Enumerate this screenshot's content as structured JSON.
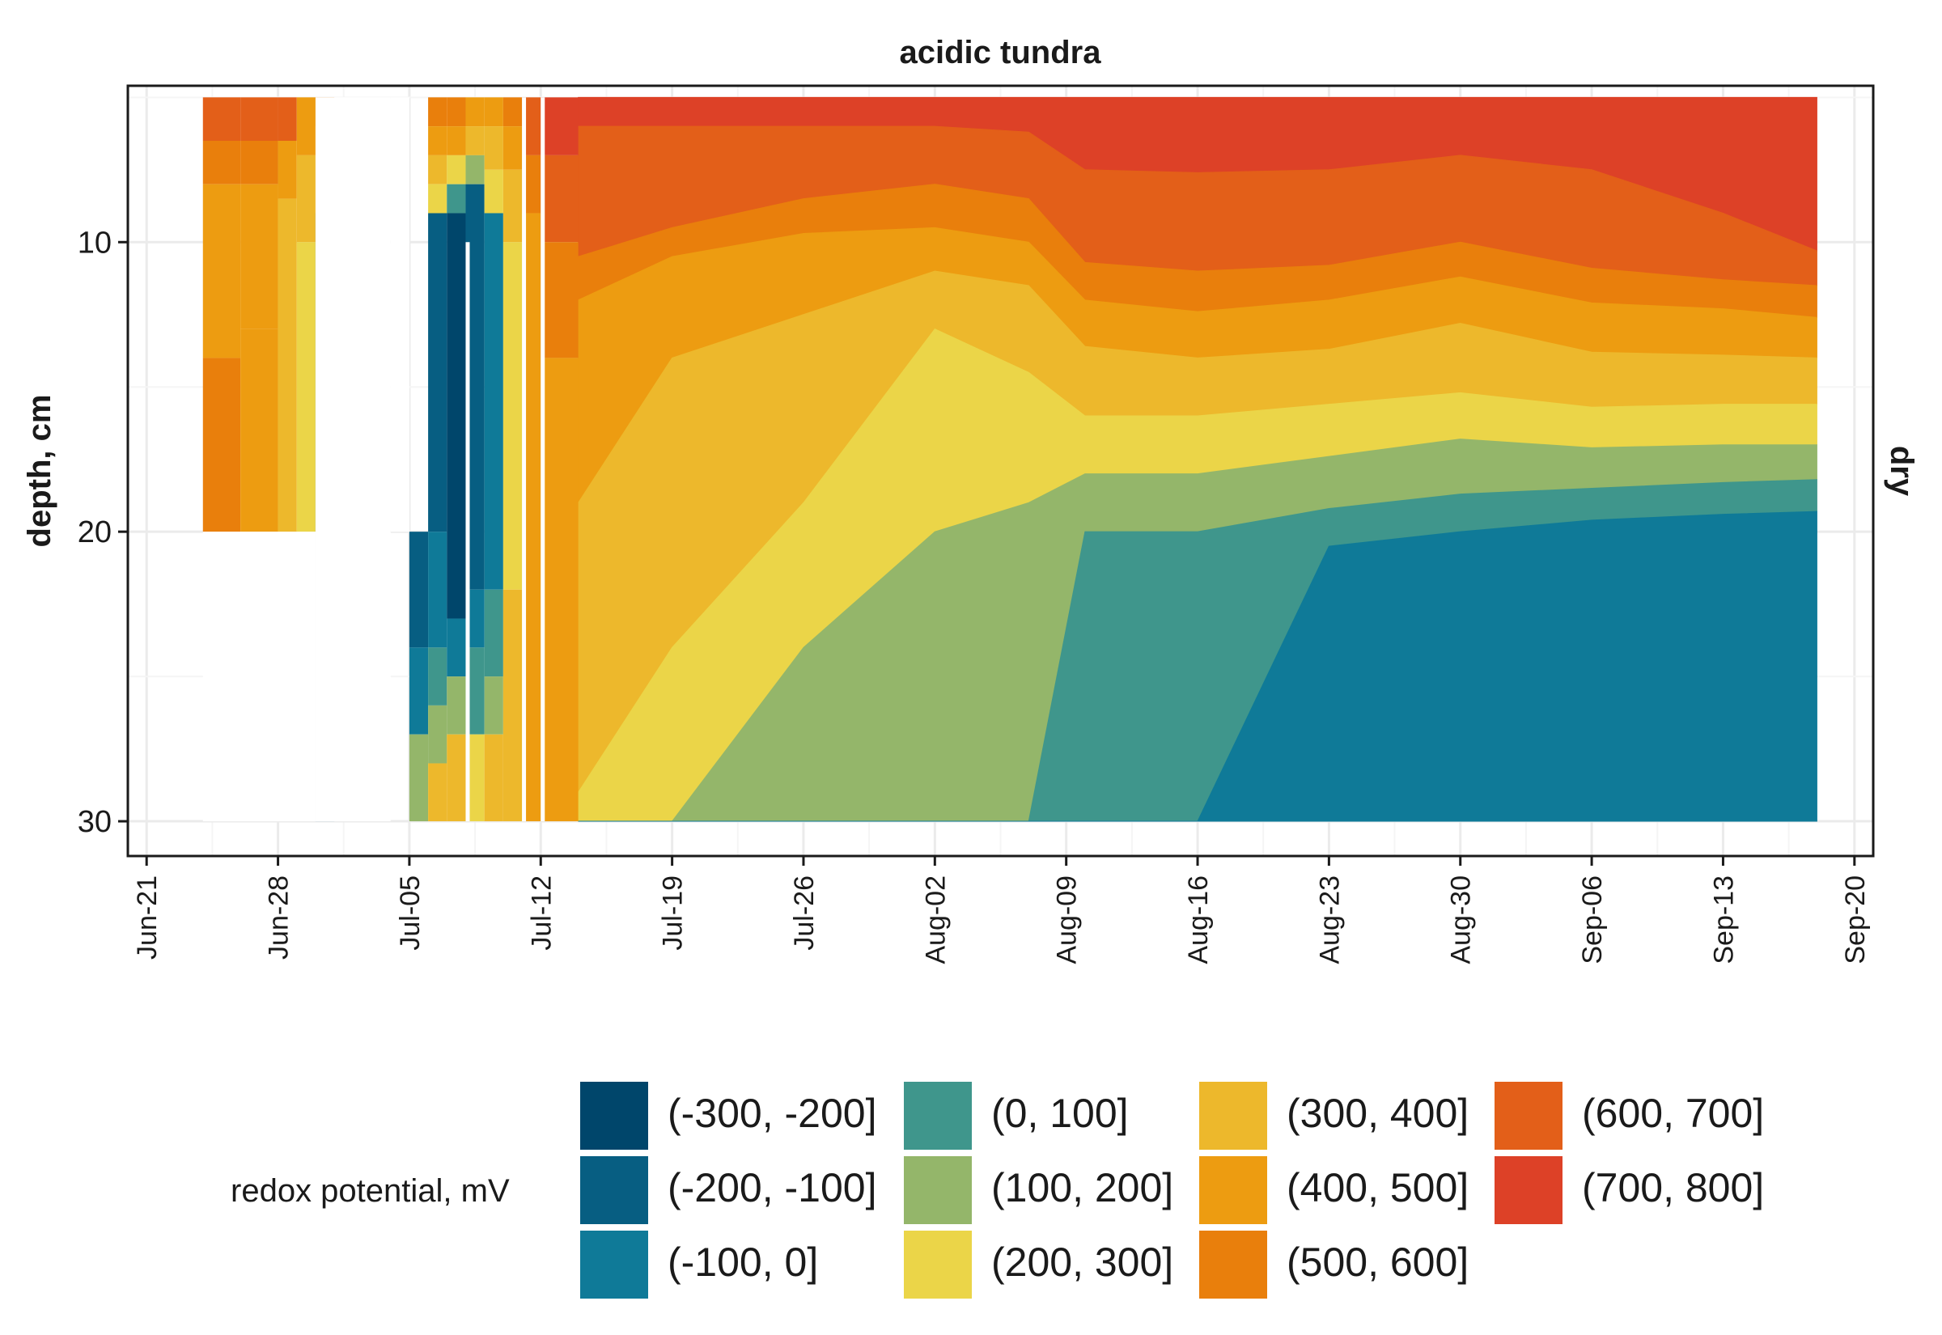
{
  "chart_data": {
    "type": "heatmap",
    "title": "acidic tundra",
    "facet_label": "dry",
    "xlabel": "",
    "ylabel": "depth, cm",
    "x_ticks": [
      "Jun-21",
      "Jun-28",
      "Jul-05",
      "Jul-12",
      "Jul-19",
      "Jul-26",
      "Aug-02",
      "Aug-09",
      "Aug-16",
      "Aug-23",
      "Aug-30",
      "Sep-06",
      "Sep-13",
      "Sep-20"
    ],
    "y_ticks": [
      10,
      20,
      30
    ],
    "y_reversed": true,
    "ylim": [
      5,
      30
    ],
    "xlim": [
      "2021-06-20",
      "2021-09-21"
    ],
    "grid": true,
    "legend_position": "bottom",
    "legend_title": "redox potential, mV",
    "legend": [
      {
        "label": "(-300, -200]",
        "color": "#00466B"
      },
      {
        "label": "(-200, -100]",
        "color": "#075E82"
      },
      {
        "label": "(-100, 0]",
        "color": "#0F7A98"
      },
      {
        "label": "(0, 100]",
        "color": "#3F968C"
      },
      {
        "label": "(100, 200]",
        "color": "#94B66A"
      },
      {
        "label": "(200, 300]",
        "color": "#EBD548"
      },
      {
        "label": "(300, 400]",
        "color": "#EDB82C"
      },
      {
        "label": "(400, 500]",
        "color": "#ED9C11"
      },
      {
        "label": "(500, 600]",
        "color": "#E97F0C"
      },
      {
        "label": "(600, 700]",
        "color": "#E35F19"
      },
      {
        "label": "(700, 800]",
        "color": "#DD4127"
      }
    ],
    "boundary_depths": {
      "note_units": "depth (cm) of the lower edge of each class band, listed from the surface down; x in days of 2021",
      "dates": [
        "2021-07-14",
        "2021-07-19",
        "2021-07-26",
        "2021-08-02",
        "2021-08-07",
        "2021-08-10",
        "2021-08-16",
        "2021-08-23",
        "2021-08-30",
        "2021-09-06",
        "2021-09-13",
        "2021-09-18"
      ],
      "bands": [
        {
          "class": "(700, 800]",
          "depths": [
            6.0,
            6.0,
            6.0,
            6.0,
            6.2,
            7.5,
            7.6,
            7.5,
            7.0,
            7.5,
            9.0,
            10.3
          ]
        },
        {
          "class": "(600, 700]",
          "depths": [
            10.5,
            9.5,
            8.5,
            8.0,
            8.5,
            10.7,
            11.0,
            10.8,
            10.0,
            10.9,
            11.3,
            11.5
          ]
        },
        {
          "class": "(500, 600]",
          "depths": [
            12.0,
            10.5,
            9.7,
            9.5,
            10.0,
            12.0,
            12.4,
            12.0,
            11.2,
            12.1,
            12.3,
            12.6
          ]
        },
        {
          "class": "(400, 500]",
          "depths": [
            19.0,
            14.0,
            12.5,
            11.0,
            11.5,
            13.6,
            14.0,
            13.7,
            12.8,
            13.8,
            13.9,
            14.0
          ]
        },
        {
          "class": "(300, 400]",
          "depths": [
            29.0,
            24.0,
            19.0,
            13.0,
            14.5,
            16.0,
            16.0,
            15.6,
            15.2,
            15.7,
            15.6,
            15.6
          ]
        },
        {
          "class": "(200, 300]",
          "depths": [
            30.0,
            30.0,
            24.0,
            20.0,
            19.0,
            18.0,
            18.0,
            17.4,
            16.8,
            17.1,
            17.0,
            17.0
          ]
        },
        {
          "class": "(100, 200]",
          "depths": [
            30.0,
            30.0,
            30.0,
            30.0,
            30.0,
            20.0,
            20.0,
            19.2,
            18.7,
            18.5,
            18.3,
            18.2
          ]
        },
        {
          "class": "(0, 100]",
          "depths": [
            30.0,
            30.0,
            30.0,
            30.0,
            30.0,
            30.0,
            30.0,
            20.5,
            20.0,
            19.6,
            19.4,
            19.3
          ]
        },
        {
          "class": "(-100, 0]",
          "depths": [
            30.0,
            30.0,
            30.0,
            30.0,
            30.0,
            30.0,
            30.0,
            30.0,
            30.0,
            30.0,
            30.0,
            30.0
          ]
        }
      ]
    }
  },
  "colors": {
    "panel_border": "#1a1a1a",
    "grid_major": "#EBEBEB",
    "grid_minor": "#F5F5F5"
  }
}
